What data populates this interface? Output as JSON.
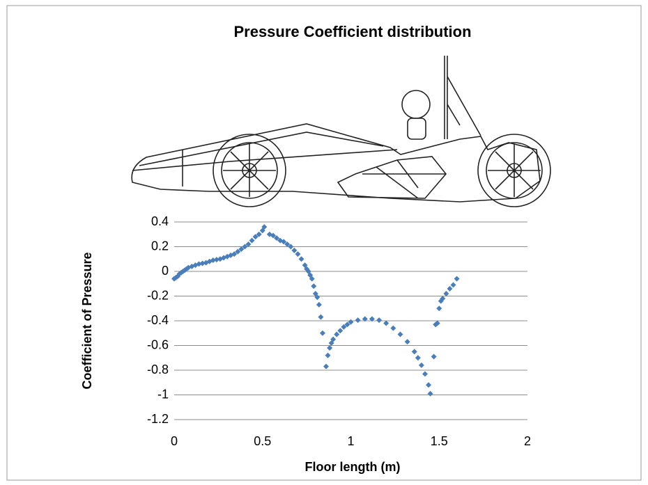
{
  "chart_data": {
    "type": "scatter",
    "title": "Pressure Coefficient distribution",
    "x_label": "Floor length (m)",
    "y_label": "Coefficient of Pressure",
    "x": [
      0.0,
      0.01,
      0.02,
      0.03,
      0.04,
      0.05,
      0.06,
      0.07,
      0.08,
      0.1,
      0.12,
      0.14,
      0.16,
      0.18,
      0.2,
      0.22,
      0.24,
      0.26,
      0.28,
      0.3,
      0.32,
      0.34,
      0.36,
      0.38,
      0.4,
      0.42,
      0.44,
      0.46,
      0.48,
      0.5,
      0.51,
      0.54,
      0.56,
      0.58,
      0.6,
      0.62,
      0.64,
      0.66,
      0.68,
      0.7,
      0.72,
      0.74,
      0.75,
      0.76,
      0.77,
      0.78,
      0.79,
      0.8,
      0.81,
      0.82,
      0.83,
      0.84,
      0.86,
      0.87,
      0.88,
      0.89,
      0.9,
      0.92,
      0.94,
      0.96,
      0.98,
      1.0,
      1.04,
      1.08,
      1.12,
      1.16,
      1.2,
      1.24,
      1.28,
      1.32,
      1.36,
      1.38,
      1.4,
      1.42,
      1.44,
      1.45,
      1.47,
      1.48,
      1.49,
      1.5,
      1.51,
      1.52,
      1.54,
      1.56,
      1.58,
      1.6
    ],
    "values": [
      -0.06,
      -0.05,
      -0.04,
      -0.02,
      -0.01,
      0.0,
      0.01,
      0.02,
      0.03,
      0.04,
      0.05,
      0.06,
      0.065,
      0.07,
      0.08,
      0.09,
      0.095,
      0.1,
      0.11,
      0.12,
      0.13,
      0.14,
      0.16,
      0.18,
      0.2,
      0.22,
      0.25,
      0.28,
      0.3,
      0.33,
      0.36,
      0.3,
      0.29,
      0.27,
      0.25,
      0.24,
      0.22,
      0.2,
      0.17,
      0.14,
      0.1,
      0.05,
      0.02,
      0.0,
      -0.03,
      -0.06,
      -0.12,
      -0.18,
      -0.21,
      -0.27,
      -0.37,
      -0.5,
      -0.77,
      -0.68,
      -0.62,
      -0.58,
      -0.55,
      -0.51,
      -0.48,
      -0.45,
      -0.43,
      -0.41,
      -0.395,
      -0.385,
      -0.385,
      -0.395,
      -0.42,
      -0.46,
      -0.51,
      -0.57,
      -0.65,
      -0.7,
      -0.76,
      -0.83,
      -0.92,
      -0.99,
      -0.69,
      -0.43,
      -0.42,
      -0.3,
      -0.24,
      -0.22,
      -0.18,
      -0.14,
      -0.11,
      -0.06
    ],
    "color": "#4a7ebb",
    "xlim": [
      0,
      2
    ],
    "xticks": [
      0,
      0.5,
      1,
      1.5,
      2
    ],
    "ylim": [
      -1.2,
      0.4
    ],
    "yticks": [
      -1.2,
      -1,
      -0.8,
      -0.6,
      -0.4,
      -0.2,
      0,
      0.2,
      0.4
    ],
    "grid": true
  }
}
